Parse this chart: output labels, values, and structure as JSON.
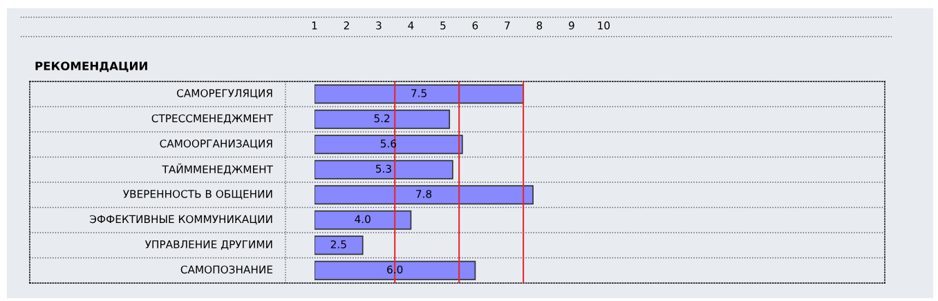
{
  "chart_data": {
    "type": "bar",
    "orientation": "horizontal",
    "title": "РЕКОМЕНДАЦИИ",
    "categories": [
      "САМОРЕГУЛЯЦИЯ",
      "СТРЕССМЕНЕДЖМЕНТ",
      "САМООРГАНИЗАЦИЯ",
      "ТАЙММЕНЕДЖМЕНТ",
      "УВЕРЕННОСТЬ В ОБЩЕНИИ",
      "ЭФФЕКТИВНЫЕ КОММУНИКАЦИИ",
      "УПРАВЛЕНИЕ ДРУГИМИ",
      "САМОПОЗНАНИЕ"
    ],
    "values": [
      7.5,
      5.2,
      5.6,
      5.3,
      7.8,
      4.0,
      2.5,
      6.0
    ],
    "value_labels": [
      "7.5",
      "5.2",
      "5.6",
      "5.3",
      "7.8",
      "4.0",
      "2.5",
      "6.0"
    ],
    "color": "#8888ff",
    "xlim": [
      1,
      18.75
    ],
    "xticks": [
      1,
      2,
      3,
      4,
      5,
      6,
      7,
      8,
      9,
      10
    ],
    "ref_lines": [
      {
        "axis": "x",
        "value": 3.5,
        "color": "#e8262a"
      },
      {
        "axis": "x",
        "value": 5.5,
        "color": "#e8262a"
      },
      {
        "axis": "x",
        "value": 7.5,
        "color": "#e8262a"
      }
    ],
    "grid": false,
    "legend": false
  }
}
